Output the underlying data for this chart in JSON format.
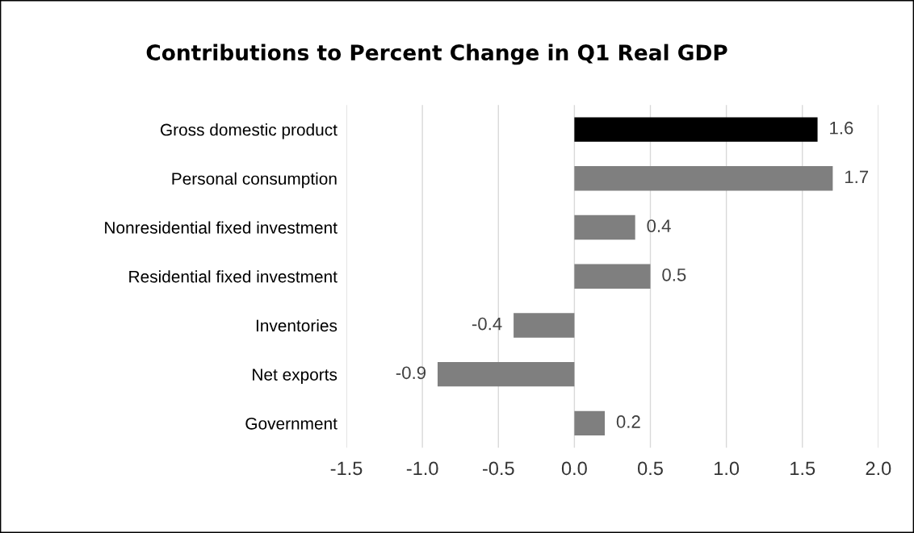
{
  "chart_data": {
    "type": "bar",
    "orientation": "horizontal",
    "title": "Contributions to Percent Change in Q1 Real GDP",
    "categories": [
      "Gross domestic product",
      "Personal consumption",
      "Nonresidential fixed investment",
      "Residential fixed investment",
      "Inventories",
      "Net exports",
      "Government"
    ],
    "values": [
      1.6,
      1.7,
      0.4,
      0.5,
      -0.4,
      -0.9,
      0.2
    ],
    "colors": [
      "#000000",
      "#7f7f7f",
      "#7f7f7f",
      "#7f7f7f",
      "#7f7f7f",
      "#7f7f7f",
      "#7f7f7f"
    ],
    "xlim": [
      -1.5,
      2.0
    ],
    "xticks": [
      {
        "value": -1.5,
        "label": "-1.5"
      },
      {
        "value": -1.0,
        "label": "-1.0"
      },
      {
        "value": -0.5,
        "label": "-0.5"
      },
      {
        "value": 0.0,
        "label": "0.0"
      },
      {
        "value": 0.5,
        "label": "0.5"
      },
      {
        "value": 1.0,
        "label": "1.0"
      },
      {
        "value": 1.5,
        "label": "1.5"
      },
      {
        "value": 2.0,
        "label": "2.0"
      }
    ],
    "grid": "x",
    "data_labels": true,
    "legend": false
  }
}
